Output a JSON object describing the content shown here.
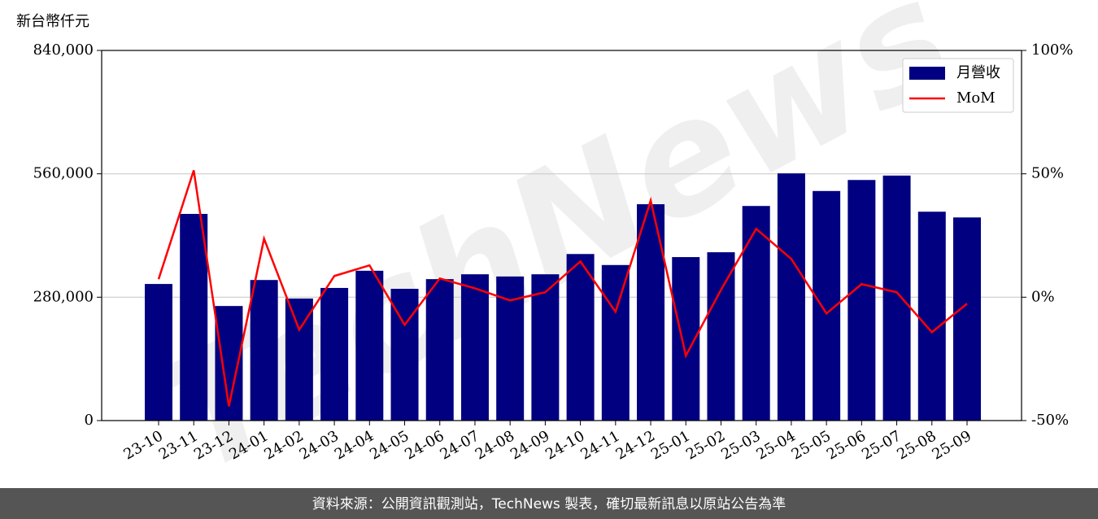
{
  "chart_data": {
    "type": "bar_line",
    "y_axis_title": "新台幣仟元",
    "watermark": "TechNews",
    "source": "資料來源：公開資訊觀測站，TechNews 製表，確切最新訊息以原站公告為準",
    "categories": [
      "23-10",
      "23-11",
      "23-12",
      "24-01",
      "24-02",
      "24-03",
      "24-04",
      "24-05",
      "24-06",
      "24-07",
      "24-08",
      "24-09",
      "24-10",
      "24-11",
      "24-12",
      "25-01",
      "25-02",
      "25-03",
      "25-04",
      "25-05",
      "25-06",
      "25-07",
      "25-08",
      "25-09"
    ],
    "series": [
      {
        "name": "月營收",
        "type": "bar",
        "color": "#000080",
        "values": [
          310000,
          469000,
          260000,
          319000,
          277000,
          301000,
          340000,
          299000,
          321000,
          332000,
          327000,
          332000,
          378000,
          353000,
          491000,
          371000,
          382000,
          487000,
          561000,
          521000,
          546000,
          556000,
          474000,
          461000
        ]
      },
      {
        "name": "MoM",
        "type": "line",
        "axis": "y2",
        "color": "#ff0000",
        "values": [
          7.3,
          51.4,
          -44.2,
          23.7,
          -13.2,
          8.6,
          12.9,
          -11.2,
          7.6,
          3.6,
          -1.3,
          2.0,
          14.5,
          -5.9,
          39.2,
          -23.7,
          3.0,
          27.7,
          15.5,
          -6.6,
          5.3,
          2.0,
          -14.2,
          -2.6
        ]
      }
    ],
    "ylim": [
      0,
      840000
    ],
    "yticks": [
      0,
      {
        "value": 280000,
        "label": "280,000"
      },
      {
        "value": 560000,
        "label": "560,000"
      },
      {
        "value": 840000,
        "label": "840,000"
      }
    ],
    "y2lim": [
      -50,
      100
    ],
    "y2ticks": [
      {
        "value": -50,
        "label": "-50%"
      },
      {
        "value": 0,
        "label": "0%"
      },
      {
        "value": 50,
        "label": "50%"
      },
      {
        "value": 100,
        "label": "100%"
      }
    ],
    "grid": true,
    "legend": "upper right"
  }
}
